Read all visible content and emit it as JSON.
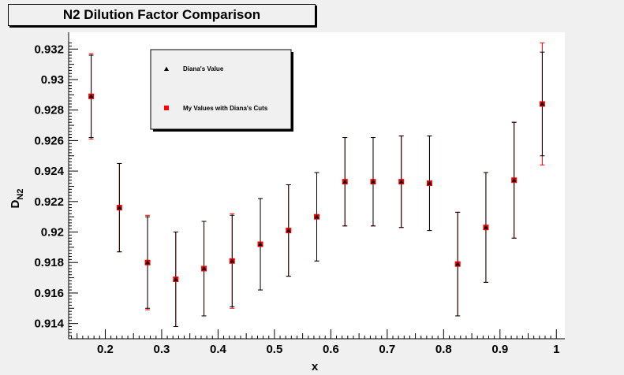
{
  "chart_data": {
    "type": "scatter",
    "title": "N2 Dilution Factor Comparison",
    "xlabel": "x",
    "ylabel": "D",
    "ylabel_subscript": "N2",
    "xlim": [
      0.135,
      1.015
    ],
    "ylim": [
      0.913,
      0.9331
    ],
    "xticks": [
      "0.2",
      "0.3",
      "0.4",
      "0.5",
      "0.6",
      "0.7",
      "0.8",
      "0.9",
      "1"
    ],
    "xtick_values": [
      0.2,
      0.3,
      0.4,
      0.5,
      0.6,
      0.7,
      0.8,
      0.9,
      1.0
    ],
    "yticks": [
      "0.914",
      "0.916",
      "0.918",
      "0.92",
      "0.922",
      "0.924",
      "0.926",
      "0.928",
      "0.93",
      "0.932"
    ],
    "ytick_values": [
      0.914,
      0.916,
      0.918,
      0.92,
      0.922,
      0.924,
      0.926,
      0.928,
      0.93,
      0.932
    ],
    "grid": false,
    "legend_placement": "top-left",
    "series": [
      {
        "name": "Diana's Value",
        "marker": "triangle",
        "color": "#000000",
        "x": [
          0.175,
          0.225,
          0.275,
          0.325,
          0.375,
          0.425,
          0.475,
          0.525,
          0.575,
          0.625,
          0.675,
          0.725,
          0.775,
          0.825,
          0.875,
          0.925,
          0.975
        ],
        "y": [
          0.9289,
          0.9216,
          0.918,
          0.9169,
          0.9176,
          0.9181,
          0.9192,
          0.9201,
          0.921,
          0.9233,
          0.9233,
          0.9233,
          0.9232,
          0.9179,
          0.9203,
          0.9234,
          0.9284
        ],
        "yerr": [
          0.0027,
          0.0029,
          0.003,
          0.0031,
          0.0031,
          0.003,
          0.003,
          0.003,
          0.0029,
          0.0029,
          0.0029,
          0.003,
          0.0031,
          0.0034,
          0.0036,
          0.0038,
          0.0034
        ]
      },
      {
        "name": "My Values with Diana's Cuts",
        "marker": "square",
        "color": "#ff0000",
        "x": [
          0.175,
          0.225,
          0.275,
          0.325,
          0.375,
          0.425,
          0.475,
          0.525,
          0.575,
          0.625,
          0.675,
          0.725,
          0.775,
          0.825,
          0.875,
          0.925,
          0.975
        ],
        "y": [
          0.9289,
          0.9216,
          0.918,
          0.9169,
          0.9176,
          0.9181,
          0.9192,
          0.9201,
          0.921,
          0.9233,
          0.9233,
          0.9233,
          0.9232,
          0.9179,
          0.9203,
          0.9234,
          0.9284
        ],
        "yerr": [
          0.0028,
          0.0029,
          0.0031,
          0.0031,
          0.0031,
          0.0031,
          0.003,
          0.003,
          0.0029,
          0.0029,
          0.0029,
          0.003,
          0.0031,
          0.0034,
          0.0036,
          0.0038,
          0.004
        ]
      }
    ]
  }
}
